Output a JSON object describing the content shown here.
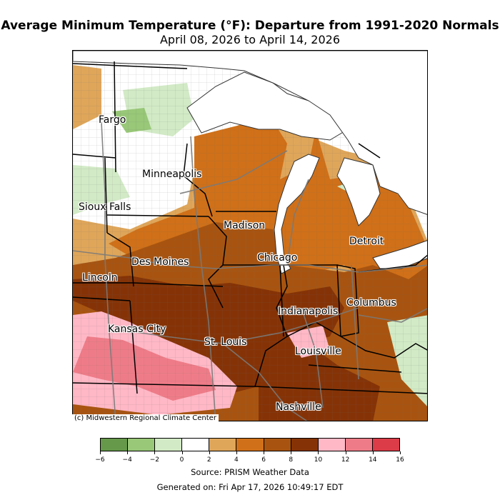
{
  "title": "Average Minimum Temperature (°F): Departure from 1991-2020 Normals",
  "subtitle": "April 08, 2026 to April 14, 2026",
  "credit": "(c) Midwestern Regional Climate Center",
  "source": "Source: PRISM Weather Data",
  "generated": "Generated on: Fri Apr 17, 2026 10:49:17 EDT",
  "cities": {
    "fargo": "Fargo",
    "minneapolis": "Minneapolis",
    "sioux_falls": "Sioux Falls",
    "madison": "Madison",
    "detroit": "Detroit",
    "chicago": "Chicago",
    "des_moines": "Des Moines",
    "lincoln": "Lincoln",
    "columbus": "Columbus",
    "indianapolis": "Indianapolis",
    "kansas_city": "Kansas City",
    "st_louis": "St. Louis",
    "louisville": "Louisville",
    "nashville": "Nashville"
  },
  "colorbar": {
    "ticks": [
      "−6",
      "−4",
      "−2",
      "0",
      "2",
      "4",
      "6",
      "8",
      "10",
      "12",
      "14",
      "16"
    ],
    "colors": [
      "#66994a",
      "#98c878",
      "#d2eac6",
      "#ffffff",
      "#dfa65a",
      "#d07018",
      "#a85410",
      "#853306",
      "#ffb8c6",
      "#ee7c88",
      "#dc3c48"
    ]
  }
}
